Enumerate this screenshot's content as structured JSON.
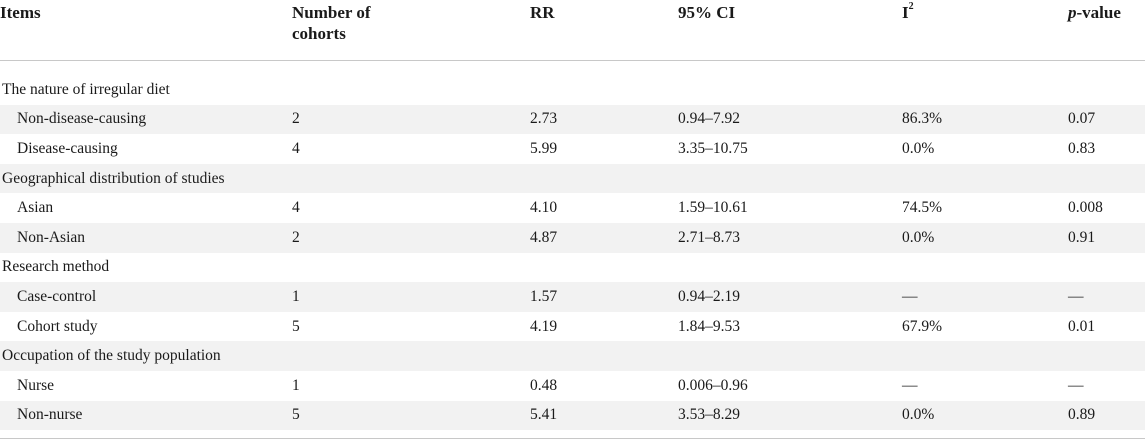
{
  "headers": {
    "items": "Items",
    "cohorts": "Number of cohorts",
    "rr": "RR",
    "ci": "95% CI",
    "i2_base": "I",
    "i2_sup": "2",
    "p_italic": "p",
    "p_rest": "-value"
  },
  "groups": [
    {
      "label": "The nature of irregular diet",
      "rows": [
        {
          "item": "Non-disease-causing",
          "cohorts": "2",
          "rr": "2.73",
          "ci": "0.94–7.92",
          "i2": "86.3%",
          "p": "0.07"
        },
        {
          "item": "Disease-causing",
          "cohorts": "4",
          "rr": "5.99",
          "ci": "3.35–10.75",
          "i2": "0.0%",
          "p": "0.83"
        }
      ]
    },
    {
      "label": "Geographical distribution of studies",
      "rows": [
        {
          "item": "Asian",
          "cohorts": "4",
          "rr": "4.10",
          "ci": "1.59–10.61",
          "i2": "74.5%",
          "p": "0.008"
        },
        {
          "item": "Non-Asian",
          "cohorts": "2",
          "rr": "4.87",
          "ci": "2.71–8.73",
          "i2": "0.0%",
          "p": "0.91"
        }
      ]
    },
    {
      "label": "Research method",
      "rows": [
        {
          "item": "Case-control",
          "cohorts": "1",
          "rr": "1.57",
          "ci": "0.94–2.19",
          "i2": "—",
          "p": "—"
        },
        {
          "item": "Cohort study",
          "cohorts": "5",
          "rr": "4.19",
          "ci": "1.84–9.53",
          "i2": "67.9%",
          "p": "0.01"
        }
      ]
    },
    {
      "label": "Occupation of the study population",
      "rows": [
        {
          "item": "Nurse",
          "cohorts": "1",
          "rr": "0.48",
          "ci": "0.006–0.96",
          "i2": "—",
          "p": "—"
        },
        {
          "item": "Non-nurse",
          "cohorts": "5",
          "rr": "5.41",
          "ci": "3.53–8.29",
          "i2": "0.0%",
          "p": "0.89"
        }
      ]
    }
  ]
}
